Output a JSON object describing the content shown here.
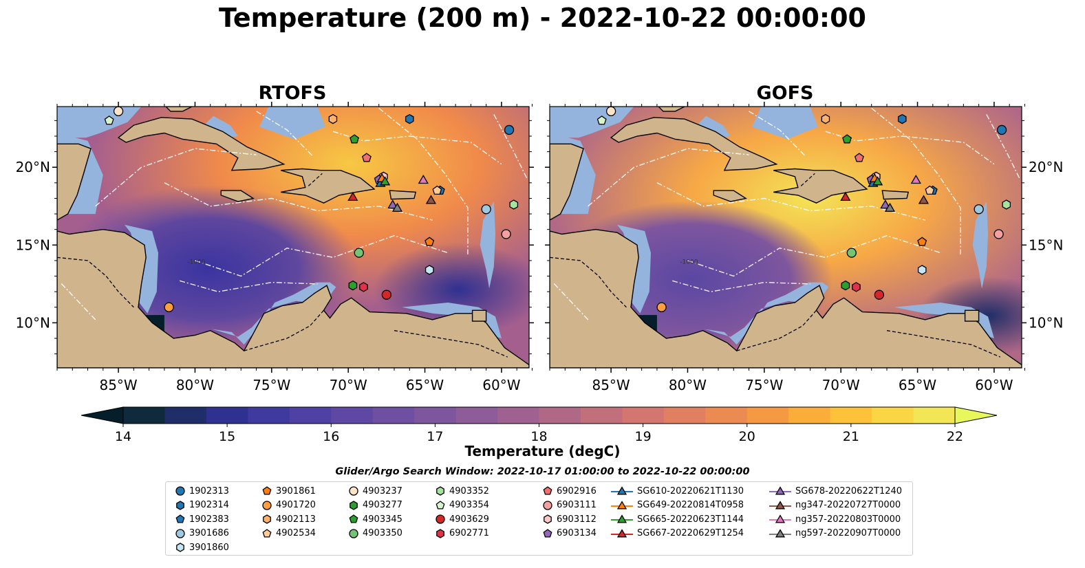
{
  "title": "Temperature (200 m) - 2022-10-22 00:00:00",
  "panels": [
    {
      "title": "RTOFS",
      "style": "rtofs"
    },
    {
      "title": "GOFS",
      "style": "gofs"
    }
  ],
  "lat_labels": [
    "20°N",
    "15°N",
    "10°N"
  ],
  "lon_labels": [
    "85°W",
    "80°W",
    "75°W",
    "70°W",
    "65°W",
    "60°W"
  ],
  "colorbar": {
    "label": "Temperature (degC)",
    "min": 14,
    "max": 22,
    "step": 0.5,
    "ticks": [
      "14",
      "15",
      "16",
      "17",
      "18",
      "19",
      "20",
      "21",
      "22"
    ],
    "colors": [
      "#0e2a3c",
      "#1f2e68",
      "#2f3190",
      "#3f3a9e",
      "#4e41a3",
      "#5e48a4",
      "#6e4fa2",
      "#7e569e",
      "#8e5c98",
      "#9f6290",
      "#b06887",
      "#c26f7c",
      "#d2766f",
      "#e17f61",
      "#ec8b51",
      "#f59a43",
      "#fbad3a",
      "#fdc23a",
      "#fad544",
      "#f2e656"
    ],
    "under_color": "#041f2a",
    "over_color": "#e8f85a"
  },
  "land_color": "#d0b48c",
  "ocean_shelf_color": "#94b4de",
  "contour_label": "-1000",
  "legend": {
    "title": "Glider/Argo Search Window: 2022-10-17 01:00:00 to 2022-10-22 00:00:00",
    "items": [
      {
        "label": "1902313",
        "marker": "circle",
        "color": "#1f77b4"
      },
      {
        "label": "1902314",
        "marker": "hexagon",
        "color": "#1f77b4"
      },
      {
        "label": "1902383",
        "marker": "pentagon",
        "color": "#1f77b4"
      },
      {
        "label": "3901686",
        "marker": "circle",
        "color": "#9ecae1"
      },
      {
        "label": "3901860",
        "marker": "hexagon",
        "color": "#c6e5f5"
      },
      {
        "label": "3901861",
        "marker": "pentagon",
        "color": "#ff7f0e"
      },
      {
        "label": "4901720",
        "marker": "circle",
        "color": "#ff9f40"
      },
      {
        "label": "4902113",
        "marker": "hexagon",
        "color": "#ffb26b"
      },
      {
        "label": "4902534",
        "marker": "pentagon",
        "color": "#ffcc99"
      },
      {
        "label": "4903237",
        "marker": "circle",
        "color": "#ffe4c8"
      },
      {
        "label": "4903277",
        "marker": "hexagon",
        "color": "#2ca02c"
      },
      {
        "label": "4903345",
        "marker": "pentagon",
        "color": "#2ca02c"
      },
      {
        "label": "4903350",
        "marker": "circle",
        "color": "#74c476"
      },
      {
        "label": "4903352",
        "marker": "hexagon",
        "color": "#a6e3a1"
      },
      {
        "label": "4903354",
        "marker": "pentagon",
        "color": "#d6f5cf"
      },
      {
        "label": "4903629",
        "marker": "circle",
        "color": "#d62728"
      },
      {
        "label": "6902771",
        "marker": "hexagon",
        "color": "#e0334a"
      },
      {
        "label": "6902916",
        "marker": "pentagon",
        "color": "#f07070"
      },
      {
        "label": "6903111",
        "marker": "circle",
        "color": "#f4a0a0"
      },
      {
        "label": "6903112",
        "marker": "hexagon",
        "color": "#fbc8c8"
      },
      {
        "label": "6903134",
        "marker": "pentagon",
        "color": "#9467bd"
      },
      {
        "label": "SG610-20220621T1130",
        "marker": "triangle",
        "color": "#1f77b4"
      },
      {
        "label": "SG649-20220814T0958",
        "marker": "triangle",
        "color": "#ff7f0e"
      },
      {
        "label": "SG665-20220623T1144",
        "marker": "triangle",
        "color": "#2ca02c"
      },
      {
        "label": "SG667-20220629T1254",
        "marker": "triangle",
        "color": "#d62728"
      },
      {
        "label": "SG678-20220622T1240",
        "marker": "triangle",
        "color": "#9467bd"
      },
      {
        "label": "ng347-20220727T0000",
        "marker": "triangle",
        "color": "#8c564b"
      },
      {
        "label": "ng357-20220803T0000",
        "marker": "triangle",
        "color": "#e377c2"
      },
      {
        "label": "ng597-20220907T0000",
        "marker": "triangle",
        "color": "#7f7f7f"
      }
    ]
  },
  "map_markers": [
    {
      "name": "1902313",
      "lon": -59.5,
      "lat": 22.4
    },
    {
      "name": "1902314",
      "lon": -66.0,
      "lat": 23.1
    },
    {
      "name": "1902383",
      "lon": -64.0,
      "lat": 18.5
    },
    {
      "name": "3901686",
      "lon": -61.0,
      "lat": 17.3
    },
    {
      "name": "3901860",
      "lon": -64.7,
      "lat": 13.4
    },
    {
      "name": "3901861",
      "lon": -64.7,
      "lat": 15.2
    },
    {
      "name": "4901720",
      "lon": -81.7,
      "lat": 11.0
    },
    {
      "name": "4902113",
      "lon": -71.0,
      "lat": 23.1
    },
    {
      "name": "4902534",
      "lon": -64.2,
      "lat": 18.5
    },
    {
      "name": "4903237",
      "lon": -85.0,
      "lat": 23.6
    },
    {
      "name": "4903277",
      "lon": -69.7,
      "lat": 12.4
    },
    {
      "name": "4903345",
      "lon": -69.6,
      "lat": 21.8
    },
    {
      "name": "4903350",
      "lon": -69.3,
      "lat": 14.5
    },
    {
      "name": "4903352",
      "lon": -59.2,
      "lat": 17.6
    },
    {
      "name": "4903354",
      "lon": -85.6,
      "lat": 23.0
    },
    {
      "name": "4903629",
      "lon": -67.5,
      "lat": 11.8
    },
    {
      "name": "6902771",
      "lon": -69.0,
      "lat": 12.3
    },
    {
      "name": "6902916",
      "lon": -68.8,
      "lat": 20.6
    },
    {
      "name": "6903111",
      "lon": -59.7,
      "lat": 15.7
    },
    {
      "name": "6903112",
      "lon": -67.7,
      "lat": 19.4
    },
    {
      "name": "6903134",
      "lon": -68.0,
      "lat": 19.2
    },
    {
      "name": "SG610-20220621T1130",
      "lon": -67.9,
      "lat": 19.0
    },
    {
      "name": "SG649-20220814T0958",
      "lon": -67.8,
      "lat": 19.3
    },
    {
      "name": "SG665-20220623T1144",
      "lon": -67.6,
      "lat": 19.1
    },
    {
      "name": "SG667-20220629T1254",
      "lon": -69.7,
      "lat": 18.1
    },
    {
      "name": "SG678-20220622T1240",
      "lon": -67.1,
      "lat": 17.6
    },
    {
      "name": "ng347-20220727T0000",
      "lon": -64.6,
      "lat": 17.9
    },
    {
      "name": "ng357-20220803T0000",
      "lon": -65.1,
      "lat": 19.2
    },
    {
      "name": "ng597-20220907T0000",
      "lon": -66.8,
      "lat": 17.4
    }
  ]
}
